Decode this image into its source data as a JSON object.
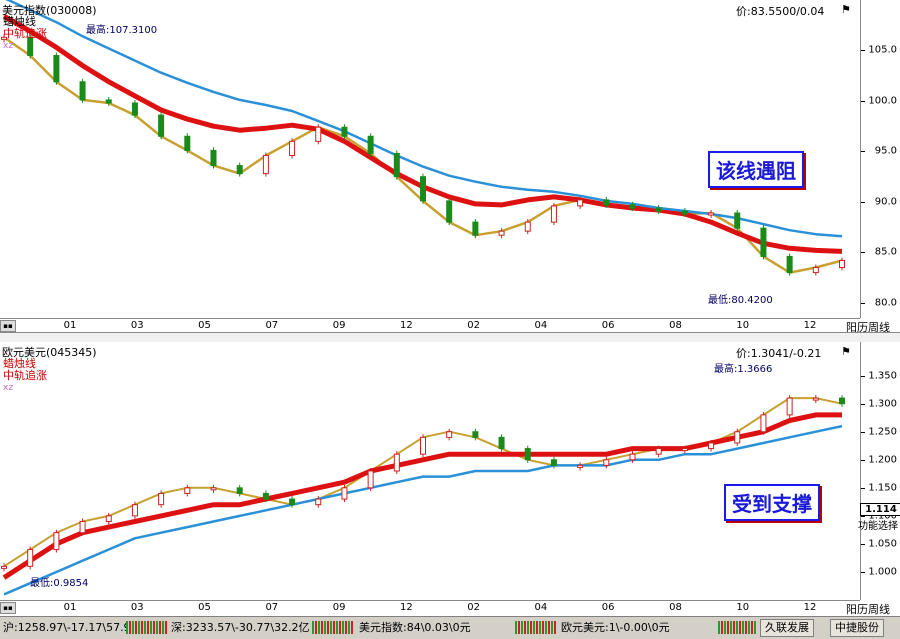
{
  "top": {
    "title": "美元指数(030008)",
    "legend": [
      {
        "label": "蜡烛线",
        "color": "#000000"
      },
      {
        "label": "中轨追涨",
        "color": "#cc0000"
      },
      {
        "label": "xz",
        "color": "#cc66cc"
      }
    ],
    "price_readout": "价:83.5500/0.04",
    "high_label": "最高:107.3100",
    "low_label": "最低:80.4200",
    "annotation": "该线遇阻",
    "x_axis_label": "阳历周线"
  },
  "bottom": {
    "title": "欧元美元(045345)",
    "legend": [
      {
        "label": "蜡烛线",
        "color": "#cc0000"
      },
      {
        "label": "中轨追涨",
        "color": "#cc0000"
      },
      {
        "label": "xz",
        "color": "#cc66cc"
      }
    ],
    "price_readout": "价:1.3041/-0.21",
    "high_label": "最高:1.3666",
    "low_label": "最低:0.9854",
    "annotation": "受到支撑",
    "current_price": "1.114",
    "side_tab": "功能选择",
    "x_axis_label": "阳历周线"
  },
  "statusbar": {
    "items": [
      "沪:1258.97\\-17.17\\57.9亿",
      "深:3233.57\\-30.77\\32.2亿",
      "美元指数:84\\0.03\\0元",
      "欧元美元:1\\-0.00\\0元"
    ],
    "buttons": [
      "久联发展",
      "中捷股份"
    ]
  },
  "chart_data": [
    {
      "type": "line",
      "name": "美元指数(030008) 周线",
      "ylim": [
        78.5,
        110
      ],
      "yticks": [
        80.0,
        85.0,
        90.0,
        95.0,
        100.0,
        105.0
      ],
      "x_tick_labels": [
        "01",
        "03",
        "05",
        "07",
        "09",
        "12",
        "02",
        "04",
        "06",
        "08",
        "10",
        "12"
      ],
      "series": [
        {
          "name": "蜡烛线",
          "color": "#c8a030",
          "values": [
            106.3,
            104.5,
            101.9,
            100.1,
            99.8,
            98.6,
            96.5,
            95.1,
            93.6,
            92.8,
            94.6,
            96.0,
            97.4,
            96.5,
            94.8,
            92.5,
            90.1,
            88.0,
            86.7,
            87.1,
            88.0,
            89.6,
            90.2,
            89.7,
            89.4,
            89.1,
            88.8,
            88.9,
            87.4,
            84.6,
            83.0,
            83.5,
            84.2
          ]
        },
        {
          "name": "中轨追涨",
          "color": "#dd1111",
          "values": [
            108.4,
            106.9,
            105.3,
            103.5,
            101.9,
            100.5,
            99.1,
            98.2,
            97.5,
            97.1,
            97.3,
            97.6,
            97.2,
            96.0,
            94.4,
            92.8,
            91.5,
            90.5,
            89.8,
            89.7,
            90.2,
            90.5,
            90.2,
            89.7,
            89.4,
            89.2,
            88.8,
            88.0,
            86.9,
            85.9,
            85.4,
            85.2,
            85.1
          ]
        },
        {
          "name": "xz",
          "color": "#2a90d8",
          "values": [
            110.2,
            109.0,
            107.8,
            106.4,
            105.2,
            104.0,
            102.8,
            101.8,
            100.9,
            100.1,
            99.6,
            99.0,
            98.0,
            97.0,
            95.8,
            94.6,
            93.5,
            92.6,
            92.0,
            91.5,
            91.2,
            91.0,
            90.6,
            90.1,
            89.8,
            89.4,
            89.1,
            88.8,
            88.4,
            87.8,
            87.2,
            86.8,
            86.6
          ]
        }
      ]
    },
    {
      "type": "line",
      "name": "欧元美元(045345) 周线",
      "ylim": [
        0.95,
        1.41
      ],
      "yticks": [
        1.0,
        1.05,
        1.1,
        1.15,
        1.2,
        1.25,
        1.3,
        1.35
      ],
      "x_tick_labels": [
        "01",
        "03",
        "05",
        "07",
        "09",
        "12",
        "02",
        "04",
        "06",
        "08",
        "10",
        "12"
      ],
      "series": [
        {
          "name": "蜡烛线",
          "color": "#c8a030",
          "values": [
            1.01,
            1.04,
            1.07,
            1.09,
            1.1,
            1.12,
            1.14,
            1.15,
            1.15,
            1.14,
            1.13,
            1.12,
            1.13,
            1.15,
            1.18,
            1.21,
            1.24,
            1.25,
            1.24,
            1.22,
            1.2,
            1.19,
            1.19,
            1.2,
            1.21,
            1.22,
            1.22,
            1.23,
            1.25,
            1.28,
            1.31,
            1.31,
            1.3
          ]
        },
        {
          "name": "中轨追涨",
          "color": "#dd1111",
          "values": [
            0.99,
            1.02,
            1.05,
            1.07,
            1.08,
            1.09,
            1.1,
            1.11,
            1.12,
            1.12,
            1.13,
            1.14,
            1.15,
            1.16,
            1.18,
            1.19,
            1.2,
            1.21,
            1.21,
            1.21,
            1.21,
            1.21,
            1.21,
            1.21,
            1.22,
            1.22,
            1.22,
            1.23,
            1.24,
            1.25,
            1.27,
            1.28,
            1.28
          ]
        },
        {
          "name": "xz",
          "color": "#2a90d8",
          "values": [
            0.96,
            0.98,
            1.0,
            1.02,
            1.04,
            1.06,
            1.07,
            1.08,
            1.09,
            1.1,
            1.11,
            1.12,
            1.13,
            1.14,
            1.15,
            1.16,
            1.17,
            1.17,
            1.18,
            1.18,
            1.18,
            1.19,
            1.19,
            1.19,
            1.2,
            1.2,
            1.21,
            1.21,
            1.22,
            1.23,
            1.24,
            1.25,
            1.26
          ]
        }
      ]
    }
  ]
}
